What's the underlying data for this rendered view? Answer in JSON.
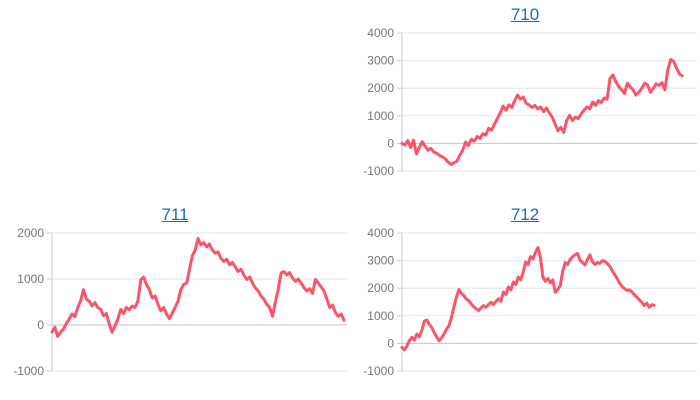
{
  "colors": {
    "line": "#fa5569",
    "gridline": "#e6e6e6",
    "zero_line": "#c4c4c4",
    "axis_line": "#cccccc",
    "tick_label": "#757575",
    "link": "#1967d2"
  },
  "chart_data": [
    {
      "type": "line",
      "title": "710",
      "ylim": [
        -1000,
        4000
      ],
      "yticks": [
        -1000,
        0,
        1000,
        2000,
        3000,
        4000
      ],
      "x_span": 0.95,
      "values": [
        0,
        -60,
        100,
        -150,
        120,
        -380,
        -150,
        60,
        -100,
        -250,
        -180,
        -310,
        -360,
        -430,
        -490,
        -560,
        -680,
        -760,
        -700,
        -650,
        -420,
        -250,
        50,
        -80,
        150,
        80,
        250,
        180,
        350,
        300,
        550,
        480,
        700,
        900,
        1100,
        1350,
        1200,
        1400,
        1300,
        1550,
        1750,
        1600,
        1680,
        1450,
        1400,
        1300,
        1380,
        1250,
        1320,
        1150,
        1280,
        1100,
        950,
        700,
        460,
        580,
        400,
        830,
        1010,
        830,
        950,
        900,
        1070,
        1200,
        1320,
        1250,
        1500,
        1380,
        1550,
        1480,
        1650,
        1600,
        2350,
        2480,
        2240,
        2060,
        1940,
        1810,
        2180,
        2050,
        1940,
        1750,
        1850,
        2000,
        2180,
        2120,
        1850,
        2000,
        2160,
        2100,
        2200,
        1940,
        2670,
        3040,
        2980,
        2730,
        2520,
        2450
      ]
    },
    {
      "type": "line",
      "title": "711",
      "ylim": [
        -1000,
        2000
      ],
      "yticks": [
        -1000,
        0,
        1000,
        2000
      ],
      "x_span": 0.99,
      "values": [
        -150,
        -50,
        -250,
        -150,
        -90,
        30,
        130,
        240,
        180,
        380,
        520,
        770,
        560,
        520,
        410,
        490,
        380,
        340,
        200,
        250,
        20,
        -160,
        -15,
        130,
        340,
        250,
        380,
        330,
        410,
        380,
        520,
        990,
        1040,
        880,
        770,
        590,
        630,
        450,
        310,
        380,
        240,
        140,
        260,
        380,
        520,
        770,
        880,
        910,
        1200,
        1500,
        1630,
        1880,
        1740,
        1790,
        1700,
        1760,
        1630,
        1560,
        1590,
        1450,
        1380,
        1430,
        1310,
        1360,
        1270,
        1160,
        1210,
        1090,
        990,
        1040,
        910,
        810,
        740,
        630,
        560,
        450,
        380,
        190,
        490,
        770,
        1130,
        1160,
        1090,
        1140,
        1020,
        950,
        1000,
        910,
        810,
        740,
        790,
        690,
        990,
        910,
        830,
        740,
        560,
        380,
        430,
        270,
        190,
        240,
        100
      ]
    },
    {
      "type": "line",
      "title": "712",
      "ylim": [
        -1000,
        4000
      ],
      "yticks": [
        -1000,
        0,
        1000,
        2000,
        3000,
        4000
      ],
      "x_span": 0.855,
      "values": [
        -150,
        -240,
        -90,
        100,
        220,
        120,
        340,
        240,
        460,
        800,
        850,
        700,
        580,
        400,
        240,
        100,
        200,
        340,
        520,
        640,
        950,
        1310,
        1670,
        1950,
        1820,
        1730,
        1610,
        1550,
        1430,
        1330,
        1250,
        1190,
        1290,
        1370,
        1310,
        1410,
        1490,
        1410,
        1530,
        1610,
        1530,
        1860,
        1770,
        2040,
        1940,
        2220,
        2130,
        2400,
        2300,
        2580,
        2950,
        2860,
        3150,
        3070,
        3300,
        3470,
        3100,
        2400,
        2250,
        2350,
        2200,
        2300,
        1850,
        1950,
        2100,
        2620,
        2930,
        2860,
        3050,
        3140,
        3210,
        3260,
        3010,
        2930,
        2840,
        3050,
        3210,
        2960,
        2860,
        2930,
        2900,
        3000,
        2980,
        2900,
        2800,
        2640,
        2490,
        2350,
        2190,
        2060,
        1980,
        1920,
        1940,
        1860,
        1770,
        1670,
        1580,
        1490,
        1370,
        1460,
        1310,
        1400,
        1380
      ]
    }
  ]
}
